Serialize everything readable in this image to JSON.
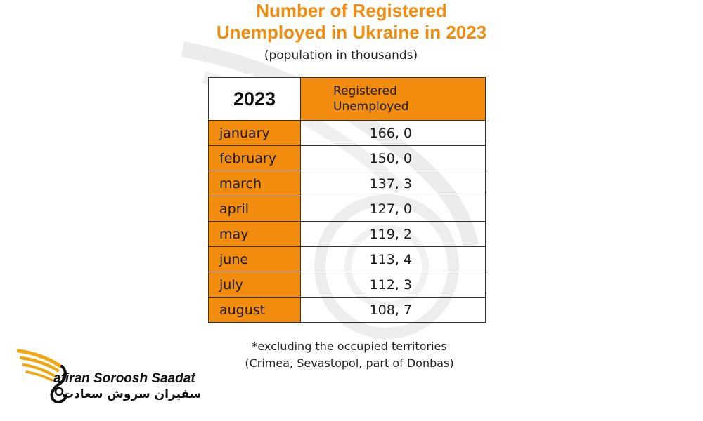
{
  "title": {
    "line1": "Number of Registered",
    "line2": "Unemployed in Ukraine in 2023"
  },
  "subtitle": "(population in thousands)",
  "table": {
    "year_header": "2023",
    "value_header_line1": "Registered",
    "value_header_line2": "Unemployed",
    "rows": [
      {
        "month": "january",
        "value": "166, 0"
      },
      {
        "month": "february",
        "value": "150, 0"
      },
      {
        "month": "march",
        "value": "137, 3"
      },
      {
        "month": "april",
        "value": "127, 0"
      },
      {
        "month": "may",
        "value": "119, 2"
      },
      {
        "month": "june",
        "value": "113, 4"
      },
      {
        "month": "july",
        "value": "112, 3"
      },
      {
        "month": "august",
        "value": "108, 7"
      }
    ]
  },
  "footnote": {
    "line1": "*excluding the occupied territories",
    "line2": "(Crimea, Sevastopol, part of Donbas)"
  },
  "logo": {
    "name_en": "afiran Soroosh Saadat",
    "name_fa": "سفیران سروش سعادت"
  },
  "colors": {
    "accent": "#f28c0f",
    "border": "#333333"
  }
}
